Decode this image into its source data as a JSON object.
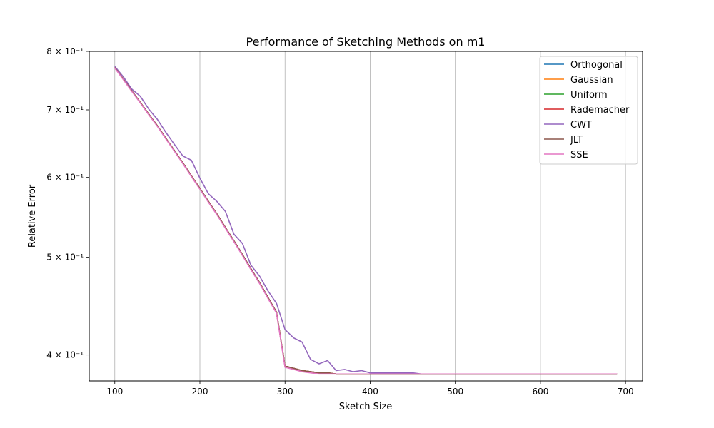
{
  "chart_data": {
    "type": "line",
    "title": "Performance of Sketching Methods on m1",
    "xlabel": "Sketch Size",
    "ylabel": "Relative Error",
    "xlim": [
      70,
      720
    ],
    "ylim": [
      0.377,
      0.8
    ],
    "yscale": "log",
    "grid": "x-only",
    "legend_position": "top-right",
    "x_ticks": [
      100,
      200,
      300,
      400,
      500,
      600,
      700
    ],
    "y_ticks": [
      {
        "value": 0.8,
        "label": "8 × 10⁻¹"
      },
      {
        "value": 0.7,
        "label": "7 × 10⁻¹"
      },
      {
        "value": 0.6,
        "label": "6 × 10⁻¹"
      },
      {
        "value": 0.5,
        "label": "5 × 10⁻¹"
      },
      {
        "value": 0.4,
        "label": "4 × 10⁻¹"
      }
    ],
    "x": [
      100,
      110,
      120,
      130,
      140,
      150,
      160,
      170,
      180,
      190,
      200,
      210,
      220,
      230,
      240,
      250,
      260,
      270,
      280,
      290,
      300,
      310,
      320,
      330,
      340,
      350,
      360,
      370,
      380,
      390,
      400,
      410,
      420,
      430,
      440,
      450,
      460,
      470,
      480,
      490,
      500,
      510,
      520,
      530,
      540,
      550,
      560,
      570,
      580,
      590,
      600,
      610,
      620,
      630,
      640,
      650,
      660,
      670,
      680,
      690
    ],
    "series": [
      {
        "name": "Orthogonal",
        "color": "#1f77b4",
        "values": [
          0.771,
          0.751,
          0.731,
          0.712,
          0.693,
          0.675,
          0.656,
          0.638,
          0.62,
          0.602,
          0.585,
          0.568,
          0.552,
          0.535,
          0.519,
          0.503,
          0.487,
          0.472,
          0.456,
          0.441,
          0.39,
          0.388,
          0.386,
          0.385,
          0.384,
          0.384,
          0.383,
          0.383,
          0.383,
          0.383,
          0.383,
          0.383,
          0.383,
          0.383,
          0.383,
          0.383,
          0.383,
          0.383,
          0.383,
          0.383,
          0.383,
          0.383,
          0.383,
          0.383,
          0.383,
          0.383,
          0.383,
          0.383,
          0.383,
          0.383,
          0.383,
          0.383,
          0.383,
          0.383,
          0.383,
          0.383,
          0.383,
          0.383,
          0.383,
          0.383
        ]
      },
      {
        "name": "Gaussian",
        "color": "#ff7f0e",
        "values": [
          0.771,
          0.751,
          0.731,
          0.712,
          0.693,
          0.675,
          0.656,
          0.638,
          0.62,
          0.602,
          0.585,
          0.568,
          0.552,
          0.535,
          0.519,
          0.503,
          0.487,
          0.472,
          0.456,
          0.441,
          0.39,
          0.388,
          0.386,
          0.385,
          0.384,
          0.384,
          0.383,
          0.383,
          0.383,
          0.383,
          0.383,
          0.383,
          0.383,
          0.383,
          0.383,
          0.383,
          0.383,
          0.383,
          0.383,
          0.383,
          0.383,
          0.383,
          0.383,
          0.383,
          0.383,
          0.383,
          0.383,
          0.383,
          0.383,
          0.383,
          0.383,
          0.383,
          0.383,
          0.383,
          0.383,
          0.383,
          0.383,
          0.383,
          0.383,
          0.383
        ]
      },
      {
        "name": "Uniform",
        "color": "#2ca02c",
        "values": [
          0.771,
          0.751,
          0.731,
          0.712,
          0.693,
          0.675,
          0.656,
          0.638,
          0.62,
          0.602,
          0.585,
          0.568,
          0.552,
          0.535,
          0.519,
          0.503,
          0.487,
          0.472,
          0.456,
          0.441,
          0.39,
          0.388,
          0.386,
          0.385,
          0.384,
          0.384,
          0.383,
          0.383,
          0.383,
          0.383,
          0.383,
          0.383,
          0.383,
          0.383,
          0.383,
          0.383,
          0.383,
          0.383,
          0.383,
          0.383,
          0.383,
          0.383,
          0.383,
          0.383,
          0.383,
          0.383,
          0.383,
          0.383,
          0.383,
          0.383,
          0.383,
          0.383,
          0.383,
          0.383,
          0.383,
          0.383,
          0.383,
          0.383,
          0.383,
          0.383
        ]
      },
      {
        "name": "Rademacher",
        "color": "#d62728",
        "values": [
          0.771,
          0.751,
          0.731,
          0.712,
          0.693,
          0.675,
          0.656,
          0.638,
          0.62,
          0.602,
          0.585,
          0.568,
          0.552,
          0.535,
          0.519,
          0.503,
          0.487,
          0.472,
          0.456,
          0.441,
          0.39,
          0.388,
          0.386,
          0.385,
          0.384,
          0.384,
          0.383,
          0.383,
          0.383,
          0.383,
          0.383,
          0.383,
          0.383,
          0.383,
          0.383,
          0.383,
          0.383,
          0.383,
          0.383,
          0.383,
          0.383,
          0.383,
          0.383,
          0.383,
          0.383,
          0.383,
          0.383,
          0.383,
          0.383,
          0.383,
          0.383,
          0.383,
          0.383,
          0.383,
          0.383,
          0.383,
          0.383,
          0.383,
          0.383,
          0.383
        ]
      },
      {
        "name": "CWT",
        "color": "#9467bd",
        "values": [
          0.773,
          0.755,
          0.734,
          0.722,
          0.701,
          0.685,
          0.665,
          0.647,
          0.63,
          0.624,
          0.599,
          0.578,
          0.568,
          0.555,
          0.527,
          0.516,
          0.491,
          0.479,
          0.463,
          0.45,
          0.424,
          0.416,
          0.412,
          0.396,
          0.392,
          0.395,
          0.386,
          0.387,
          0.385,
          0.386,
          0.384,
          0.384,
          0.384,
          0.384,
          0.384,
          0.384,
          0.383,
          0.383,
          0.383,
          0.383,
          0.383,
          0.383,
          0.383,
          0.383,
          0.383,
          0.383,
          0.383,
          0.383,
          0.383,
          0.383,
          0.383,
          0.383,
          0.383,
          0.383,
          0.383,
          0.383,
          0.383,
          0.383,
          0.383,
          0.383
        ]
      },
      {
        "name": "JLT",
        "color": "#8c564b",
        "values": [
          0.771,
          0.751,
          0.731,
          0.712,
          0.693,
          0.675,
          0.656,
          0.638,
          0.62,
          0.602,
          0.585,
          0.568,
          0.552,
          0.535,
          0.519,
          0.503,
          0.487,
          0.472,
          0.456,
          0.441,
          0.39,
          0.388,
          0.386,
          0.385,
          0.384,
          0.384,
          0.383,
          0.383,
          0.383,
          0.383,
          0.383,
          0.383,
          0.383,
          0.383,
          0.383,
          0.383,
          0.383,
          0.383,
          0.383,
          0.383,
          0.383,
          0.383,
          0.383,
          0.383,
          0.383,
          0.383,
          0.383,
          0.383,
          0.383,
          0.383,
          0.383,
          0.383,
          0.383,
          0.383,
          0.383,
          0.383,
          0.383,
          0.383,
          0.383,
          0.383
        ]
      },
      {
        "name": "SSE",
        "color": "#e377c2",
        "values": [
          0.77,
          0.75,
          0.73,
          0.711,
          0.692,
          0.674,
          0.655,
          0.637,
          0.619,
          0.601,
          0.584,
          0.567,
          0.551,
          0.534,
          0.518,
          0.502,
          0.486,
          0.471,
          0.455,
          0.44,
          0.389,
          0.387,
          0.385,
          0.384,
          0.383,
          0.383,
          0.383,
          0.383,
          0.383,
          0.383,
          0.383,
          0.383,
          0.383,
          0.383,
          0.383,
          0.383,
          0.383,
          0.383,
          0.383,
          0.383,
          0.383,
          0.383,
          0.383,
          0.383,
          0.383,
          0.383,
          0.383,
          0.383,
          0.383,
          0.383,
          0.383,
          0.383,
          0.383,
          0.383,
          0.383,
          0.383,
          0.383,
          0.383,
          0.383,
          0.383
        ]
      }
    ]
  }
}
